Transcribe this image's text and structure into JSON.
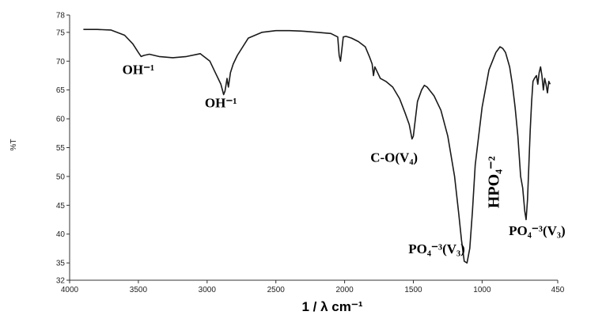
{
  "chart_data": {
    "type": "line",
    "xlabel": "1 / λ cm⁻¹",
    "ylabel": "%T",
    "xlim": [
      4000,
      450
    ],
    "ylim": [
      32,
      78
    ],
    "x_ticks": [
      4000,
      3500,
      3000,
      2500,
      2000,
      1500,
      1000,
      450
    ],
    "y_ticks": [
      32,
      35,
      40,
      45,
      50,
      55,
      60,
      65,
      70,
      75,
      78
    ],
    "grid": false,
    "line_color": "#1a1a1a",
    "series": [
      {
        "x": [
          3900,
          3800,
          3700,
          3600,
          3540,
          3500,
          3480,
          3460,
          3420,
          3350,
          3250,
          3150,
          3050,
          2980,
          2940,
          2900,
          2880,
          2870,
          2855,
          2845,
          2830,
          2810,
          2780,
          2700,
          2600,
          2500,
          2400,
          2300,
          2200,
          2100,
          2050,
          2040,
          2030,
          2020,
          2010,
          1990,
          1950,
          1900,
          1850,
          1820,
          1800,
          1790,
          1780,
          1770,
          1740,
          1700,
          1650,
          1600,
          1560,
          1530,
          1510,
          1500,
          1490,
          1470,
          1440,
          1420,
          1400,
          1350,
          1300,
          1250,
          1200,
          1170,
          1150,
          1130,
          1110,
          1090,
          1070,
          1050,
          1000,
          950,
          900,
          870,
          850,
          830,
          800,
          780,
          760,
          740,
          720,
          705,
          690,
          680,
          670,
          660,
          650,
          640,
          630,
          620,
          605,
          595,
          585,
          575,
          565,
          555,
          545,
          535,
          525,
          515,
          505
        ],
        "y": [
          75.5,
          75.5,
          75.4,
          74.5,
          73,
          71.5,
          70.8,
          71,
          71.2,
          70.8,
          70.6,
          70.8,
          71.3,
          70,
          68,
          66,
          64.2,
          64.8,
          67,
          65.5,
          68,
          69.5,
          71,
          74,
          75,
          75.3,
          75.3,
          75.2,
          75,
          74.8,
          74.2,
          71,
          70,
          72,
          74.2,
          74.3,
          74,
          73.4,
          72.5,
          70.8,
          69.5,
          67.5,
          69,
          68.5,
          67,
          66.5,
          65.5,
          63.5,
          61,
          59,
          56.5,
          57,
          59,
          63,
          65,
          65.8,
          65.5,
          64,
          61.5,
          57,
          50,
          43.5,
          39,
          35.3,
          35,
          37.5,
          44,
          52,
          62,
          68.5,
          71.5,
          72.5,
          72.2,
          71.5,
          69,
          66,
          62,
          57,
          50,
          48,
          44,
          42.5,
          46,
          52,
          58,
          63,
          66.5,
          67,
          67.5,
          66,
          68,
          69,
          67.5,
          65,
          67,
          66,
          64.5,
          66.5,
          66
        ]
      }
    ],
    "annotations": [
      {
        "text": "OH⁻¹",
        "x": 3500,
        "y": 67.8
      },
      {
        "text": "OH⁻¹",
        "x": 2900,
        "y": 62
      },
      {
        "text": "C-O(V₄)",
        "x": 1640,
        "y": 52.5
      },
      {
        "text": "HPO₄⁻²",
        "x": 880,
        "y": 49,
        "rotated": true
      },
      {
        "text": "PO₄⁻³(V₃)",
        "x": 1330,
        "y": 36.7
      },
      {
        "text": "PO₄⁻³(V₃)",
        "x": 600,
        "y": 39.8
      }
    ]
  }
}
